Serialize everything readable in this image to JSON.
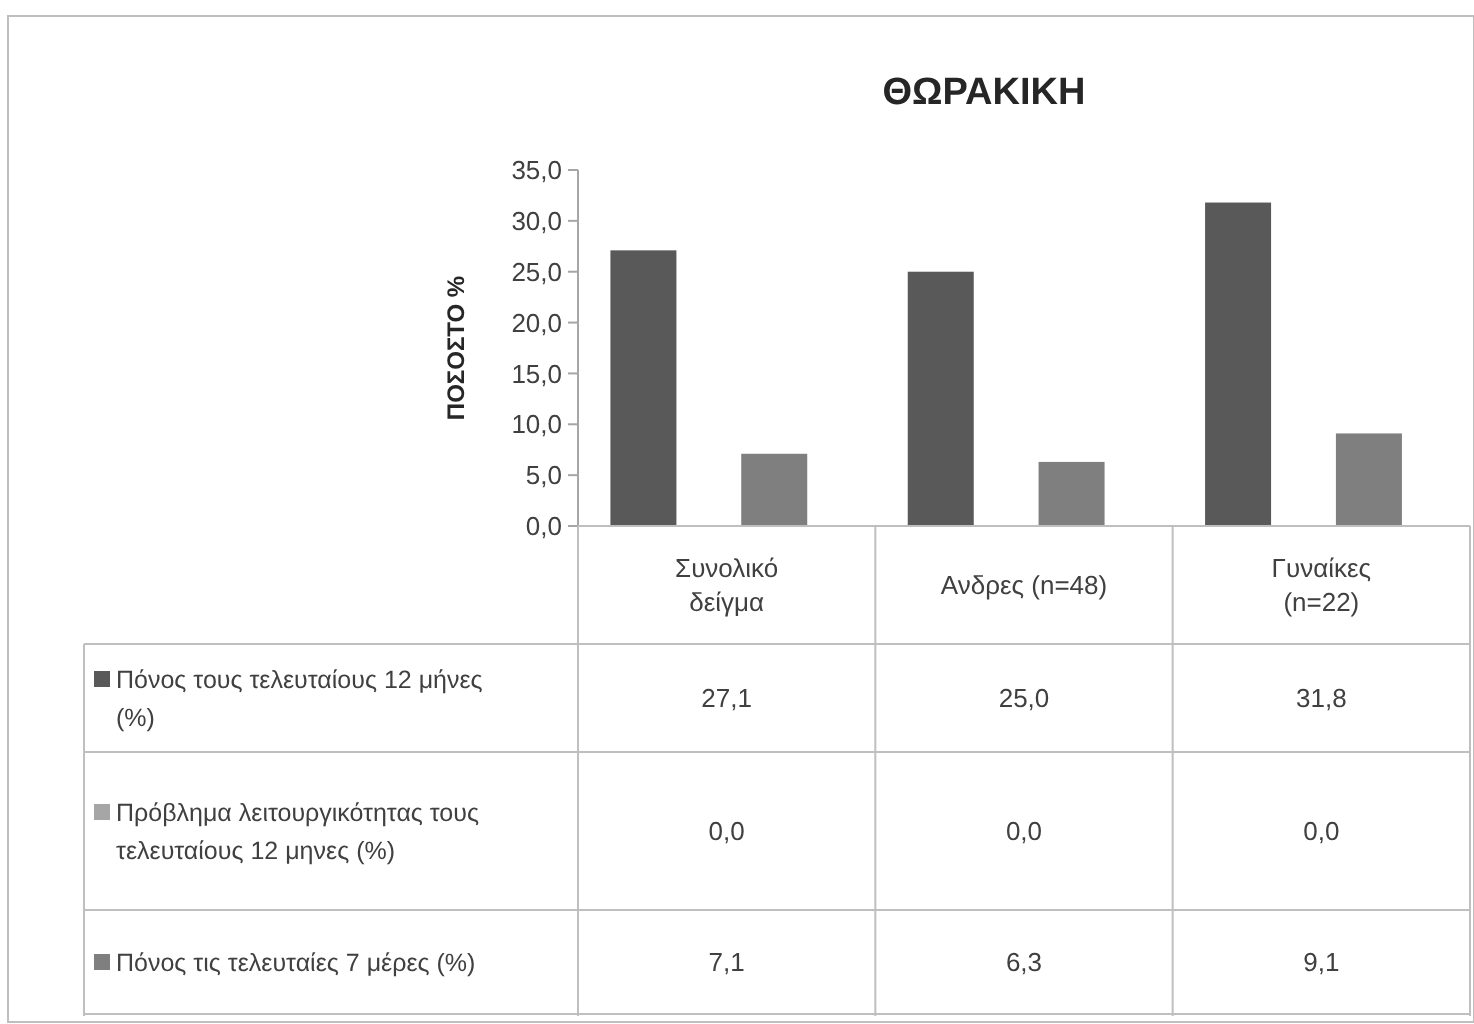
{
  "chart_data": {
    "type": "bar",
    "title": "ΘΩΡΑΚΙΚΗ",
    "ylabel": "ΠΟΣΟΣΤΟ %",
    "categories": [
      "Συνολικό δείγμα",
      "Ανδρες (n=48)",
      "Γυναίκες (n=22)"
    ],
    "series": [
      {
        "name": "Πόνος τους τελευταίους 12 μήνες (%)",
        "color": "#595959",
        "values": [
          27.1,
          25.0,
          31.8
        ],
        "value_labels": [
          "27,1",
          "25,0",
          "31,8"
        ]
      },
      {
        "name": "Πρόβλημα λειτουργικότητας τους τελευταίους 12 μηνες (%)",
        "color": "#a6a6a6",
        "values": [
          0.0,
          0.0,
          0.0
        ],
        "value_labels": [
          "0,0",
          "0,0",
          "0,0"
        ]
      },
      {
        "name": "Πόνος τις τελευταίες 7 μέρες (%)",
        "color": "#7f7f7f",
        "values": [
          7.1,
          6.3,
          9.1
        ],
        "value_labels": [
          "7,1",
          "6,3",
          "9,1"
        ]
      }
    ],
    "ylim": [
      0,
      35
    ],
    "yticks": [
      {
        "value": 0,
        "label": "0,0"
      },
      {
        "value": 5,
        "label": "5,0"
      },
      {
        "value": 10,
        "label": "10,0"
      },
      {
        "value": 15,
        "label": "15,0"
      },
      {
        "value": 20,
        "label": "20,0"
      },
      {
        "value": 25,
        "label": "25,0"
      },
      {
        "value": 30,
        "label": "30,0"
      },
      {
        "value": 35,
        "label": "35,0"
      }
    ],
    "legend": "bottom"
  }
}
